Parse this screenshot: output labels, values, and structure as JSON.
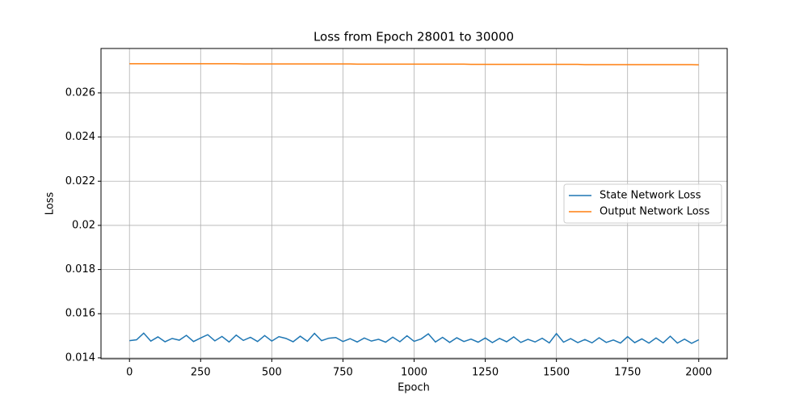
{
  "chart_data": {
    "type": "line",
    "title": "Loss from Epoch 28001 to 30000",
    "x_label": "Epoch",
    "y_label": "Loss",
    "x": [
      0,
      25,
      50,
      75,
      100,
      125,
      150,
      175,
      200,
      225,
      250,
      275,
      300,
      325,
      350,
      375,
      400,
      425,
      450,
      475,
      500,
      525,
      550,
      575,
      600,
      625,
      650,
      675,
      700,
      725,
      750,
      775,
      800,
      825,
      850,
      875,
      900,
      925,
      950,
      975,
      1000,
      1025,
      1050,
      1075,
      1100,
      1125,
      1150,
      1175,
      1200,
      1225,
      1250,
      1275,
      1300,
      1325,
      1350,
      1375,
      1400,
      1425,
      1450,
      1475,
      1500,
      1525,
      1550,
      1575,
      1600,
      1625,
      1650,
      1675,
      1700,
      1725,
      1750,
      1775,
      1800,
      1825,
      1850,
      1875,
      1900,
      1925,
      1950,
      1975,
      2000
    ],
    "series": [
      {
        "name": "State Network Loss",
        "color": "#1f77b4",
        "values": [
          0.01478,
          0.01482,
          0.01512,
          0.01476,
          0.01495,
          0.01473,
          0.01488,
          0.0148,
          0.01502,
          0.01474,
          0.0149,
          0.01505,
          0.01477,
          0.01497,
          0.01472,
          0.01503,
          0.01479,
          0.01493,
          0.01474,
          0.01501,
          0.01476,
          0.01496,
          0.01488,
          0.01473,
          0.01498,
          0.01475,
          0.01511,
          0.01478,
          0.01489,
          0.01492,
          0.01474,
          0.01487,
          0.01472,
          0.0149,
          0.01476,
          0.01484,
          0.01471,
          0.01494,
          0.01473,
          0.015,
          0.01475,
          0.01486,
          0.01509,
          0.01472,
          0.01493,
          0.0147,
          0.01491,
          0.01474,
          0.01485,
          0.01471,
          0.0149,
          0.01469,
          0.01488,
          0.01473,
          0.01495,
          0.0147,
          0.01484,
          0.01472,
          0.01489,
          0.01468,
          0.0151,
          0.01471,
          0.01487,
          0.01469,
          0.01483,
          0.01468,
          0.01491,
          0.0147,
          0.01481,
          0.01467,
          0.01496,
          0.01469,
          0.01486,
          0.01467,
          0.0149,
          0.01468,
          0.01498,
          0.01467,
          0.01485,
          0.01466,
          0.01482
        ]
      },
      {
        "name": "Output Network Loss",
        "color": "#ff7f0e",
        "values": [
          0.02732,
          0.02732,
          0.02732,
          0.02732,
          0.02732,
          0.02732,
          0.02732,
          0.02732,
          0.02732,
          0.02732,
          0.02732,
          0.02732,
          0.02732,
          0.02732,
          0.02732,
          0.02732,
          0.02731,
          0.02731,
          0.02731,
          0.02731,
          0.02731,
          0.02731,
          0.02731,
          0.02731,
          0.02731,
          0.02731,
          0.02731,
          0.02731,
          0.02731,
          0.02731,
          0.02731,
          0.02731,
          0.0273,
          0.0273,
          0.0273,
          0.0273,
          0.0273,
          0.0273,
          0.0273,
          0.0273,
          0.0273,
          0.0273,
          0.0273,
          0.0273,
          0.0273,
          0.0273,
          0.0273,
          0.0273,
          0.02729,
          0.02729,
          0.02729,
          0.02729,
          0.02729,
          0.02729,
          0.02729,
          0.02729,
          0.02729,
          0.02729,
          0.02729,
          0.02729,
          0.02729,
          0.02729,
          0.02729,
          0.02729,
          0.02728,
          0.02728,
          0.02728,
          0.02728,
          0.02728,
          0.02728,
          0.02728,
          0.02728,
          0.02728,
          0.02728,
          0.02728,
          0.02728,
          0.02728,
          0.02728,
          0.02728,
          0.02728,
          0.02727
        ]
      }
    ],
    "xlim": [
      -100,
      2100
    ],
    "ylim": [
      0.01396,
      0.02801
    ],
    "xticks": [
      0,
      250,
      500,
      750,
      1000,
      1250,
      1500,
      1750,
      2000
    ],
    "yticks": [
      0.014,
      0.016,
      0.018,
      0.02,
      0.022,
      0.024,
      0.026
    ],
    "grid": true,
    "legend": "center right"
  }
}
